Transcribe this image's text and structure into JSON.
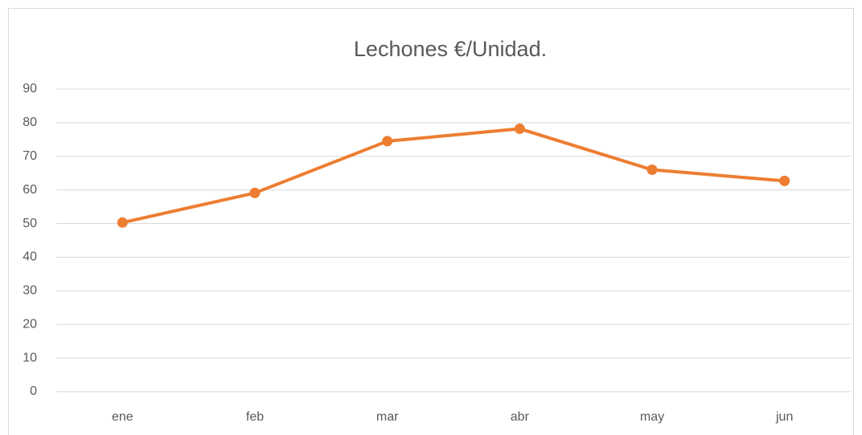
{
  "chart_data": {
    "type": "line",
    "title": "Lechones €/Unidad.",
    "categories": [
      "ene",
      "feb",
      "mar",
      "abr",
      "may",
      "jun"
    ],
    "values": [
      50.3,
      59.1,
      74.5,
      78.2,
      66.0,
      62.7
    ],
    "color": "#ed7d31",
    "ylim": [
      0,
      90
    ],
    "yticks": [
      0,
      10,
      20,
      30,
      40,
      50,
      60,
      70,
      80,
      90
    ],
    "grid": true
  }
}
